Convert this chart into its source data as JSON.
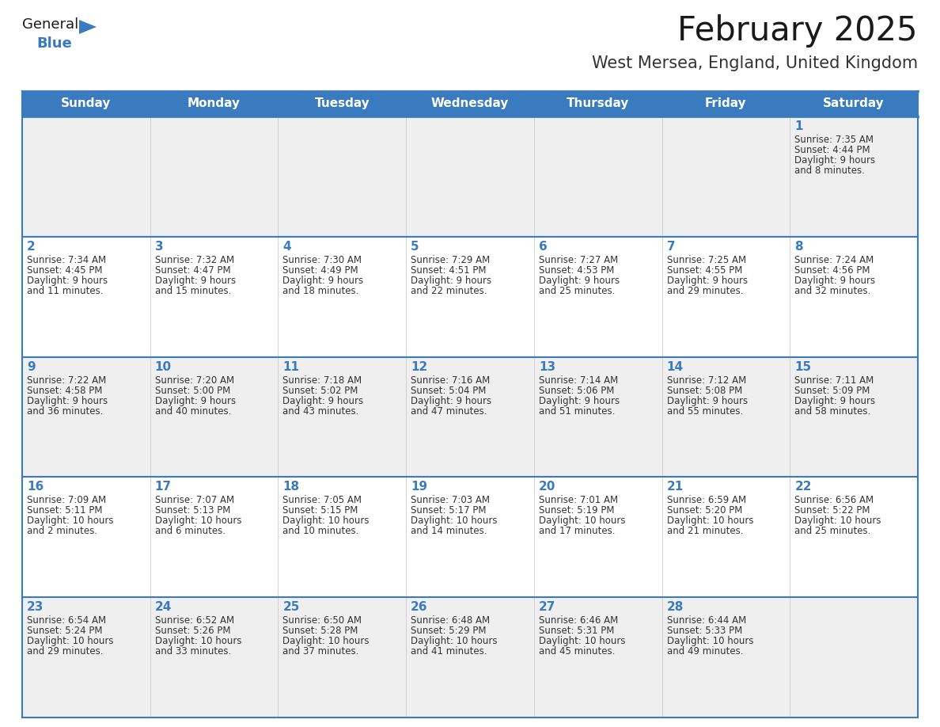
{
  "title": "February 2025",
  "subtitle": "West Mersea, England, United Kingdom",
  "header_color": "#3a7bbf",
  "header_text_color": "#ffffff",
  "day_names": [
    "Sunday",
    "Monday",
    "Tuesday",
    "Wednesday",
    "Thursday",
    "Friday",
    "Saturday"
  ],
  "bg_color_odd": "#efefef",
  "bg_color_even": "#ffffff",
  "text_color": "#333333",
  "date_color": "#3a7bbf",
  "line_color": "#3a7bbf",
  "separator_color": "#aaaaaa",
  "days": [
    {
      "date": 1,
      "col": 6,
      "row": 0,
      "sunrise": "7:35 AM",
      "sunset": "4:44 PM",
      "daylight": "9 hours\nand 8 minutes."
    },
    {
      "date": 2,
      "col": 0,
      "row": 1,
      "sunrise": "7:34 AM",
      "sunset": "4:45 PM",
      "daylight": "9 hours\nand 11 minutes."
    },
    {
      "date": 3,
      "col": 1,
      "row": 1,
      "sunrise": "7:32 AM",
      "sunset": "4:47 PM",
      "daylight": "9 hours\nand 15 minutes."
    },
    {
      "date": 4,
      "col": 2,
      "row": 1,
      "sunrise": "7:30 AM",
      "sunset": "4:49 PM",
      "daylight": "9 hours\nand 18 minutes."
    },
    {
      "date": 5,
      "col": 3,
      "row": 1,
      "sunrise": "7:29 AM",
      "sunset": "4:51 PM",
      "daylight": "9 hours\nand 22 minutes."
    },
    {
      "date": 6,
      "col": 4,
      "row": 1,
      "sunrise": "7:27 AM",
      "sunset": "4:53 PM",
      "daylight": "9 hours\nand 25 minutes."
    },
    {
      "date": 7,
      "col": 5,
      "row": 1,
      "sunrise": "7:25 AM",
      "sunset": "4:55 PM",
      "daylight": "9 hours\nand 29 minutes."
    },
    {
      "date": 8,
      "col": 6,
      "row": 1,
      "sunrise": "7:24 AM",
      "sunset": "4:56 PM",
      "daylight": "9 hours\nand 32 minutes."
    },
    {
      "date": 9,
      "col": 0,
      "row": 2,
      "sunrise": "7:22 AM",
      "sunset": "4:58 PM",
      "daylight": "9 hours\nand 36 minutes."
    },
    {
      "date": 10,
      "col": 1,
      "row": 2,
      "sunrise": "7:20 AM",
      "sunset": "5:00 PM",
      "daylight": "9 hours\nand 40 minutes."
    },
    {
      "date": 11,
      "col": 2,
      "row": 2,
      "sunrise": "7:18 AM",
      "sunset": "5:02 PM",
      "daylight": "9 hours\nand 43 minutes."
    },
    {
      "date": 12,
      "col": 3,
      "row": 2,
      "sunrise": "7:16 AM",
      "sunset": "5:04 PM",
      "daylight": "9 hours\nand 47 minutes."
    },
    {
      "date": 13,
      "col": 4,
      "row": 2,
      "sunrise": "7:14 AM",
      "sunset": "5:06 PM",
      "daylight": "9 hours\nand 51 minutes."
    },
    {
      "date": 14,
      "col": 5,
      "row": 2,
      "sunrise": "7:12 AM",
      "sunset": "5:08 PM",
      "daylight": "9 hours\nand 55 minutes."
    },
    {
      "date": 15,
      "col": 6,
      "row": 2,
      "sunrise": "7:11 AM",
      "sunset": "5:09 PM",
      "daylight": "9 hours\nand 58 minutes."
    },
    {
      "date": 16,
      "col": 0,
      "row": 3,
      "sunrise": "7:09 AM",
      "sunset": "5:11 PM",
      "daylight": "10 hours\nand 2 minutes."
    },
    {
      "date": 17,
      "col": 1,
      "row": 3,
      "sunrise": "7:07 AM",
      "sunset": "5:13 PM",
      "daylight": "10 hours\nand 6 minutes."
    },
    {
      "date": 18,
      "col": 2,
      "row": 3,
      "sunrise": "7:05 AM",
      "sunset": "5:15 PM",
      "daylight": "10 hours\nand 10 minutes."
    },
    {
      "date": 19,
      "col": 3,
      "row": 3,
      "sunrise": "7:03 AM",
      "sunset": "5:17 PM",
      "daylight": "10 hours\nand 14 minutes."
    },
    {
      "date": 20,
      "col": 4,
      "row": 3,
      "sunrise": "7:01 AM",
      "sunset": "5:19 PM",
      "daylight": "10 hours\nand 17 minutes."
    },
    {
      "date": 21,
      "col": 5,
      "row": 3,
      "sunrise": "6:59 AM",
      "sunset": "5:20 PM",
      "daylight": "10 hours\nand 21 minutes."
    },
    {
      "date": 22,
      "col": 6,
      "row": 3,
      "sunrise": "6:56 AM",
      "sunset": "5:22 PM",
      "daylight": "10 hours\nand 25 minutes."
    },
    {
      "date": 23,
      "col": 0,
      "row": 4,
      "sunrise": "6:54 AM",
      "sunset": "5:24 PM",
      "daylight": "10 hours\nand 29 minutes."
    },
    {
      "date": 24,
      "col": 1,
      "row": 4,
      "sunrise": "6:52 AM",
      "sunset": "5:26 PM",
      "daylight": "10 hours\nand 33 minutes."
    },
    {
      "date": 25,
      "col": 2,
      "row": 4,
      "sunrise": "6:50 AM",
      "sunset": "5:28 PM",
      "daylight": "10 hours\nand 37 minutes."
    },
    {
      "date": 26,
      "col": 3,
      "row": 4,
      "sunrise": "6:48 AM",
      "sunset": "5:29 PM",
      "daylight": "10 hours\nand 41 minutes."
    },
    {
      "date": 27,
      "col": 4,
      "row": 4,
      "sunrise": "6:46 AM",
      "sunset": "5:31 PM",
      "daylight": "10 hours\nand 45 minutes."
    },
    {
      "date": 28,
      "col": 5,
      "row": 4,
      "sunrise": "6:44 AM",
      "sunset": "5:33 PM",
      "daylight": "10 hours\nand 49 minutes."
    }
  ],
  "num_rows": 5,
  "num_cols": 7,
  "logo_text_general": "General",
  "logo_text_blue": "Blue",
  "logo_triangle_color": "#3a7bbf",
  "figsize": [
    11.88,
    9.18
  ],
  "dpi": 100,
  "title_fontsize": 30,
  "subtitle_fontsize": 15,
  "header_fontsize": 11,
  "date_fontsize": 11,
  "info_fontsize": 8.5
}
